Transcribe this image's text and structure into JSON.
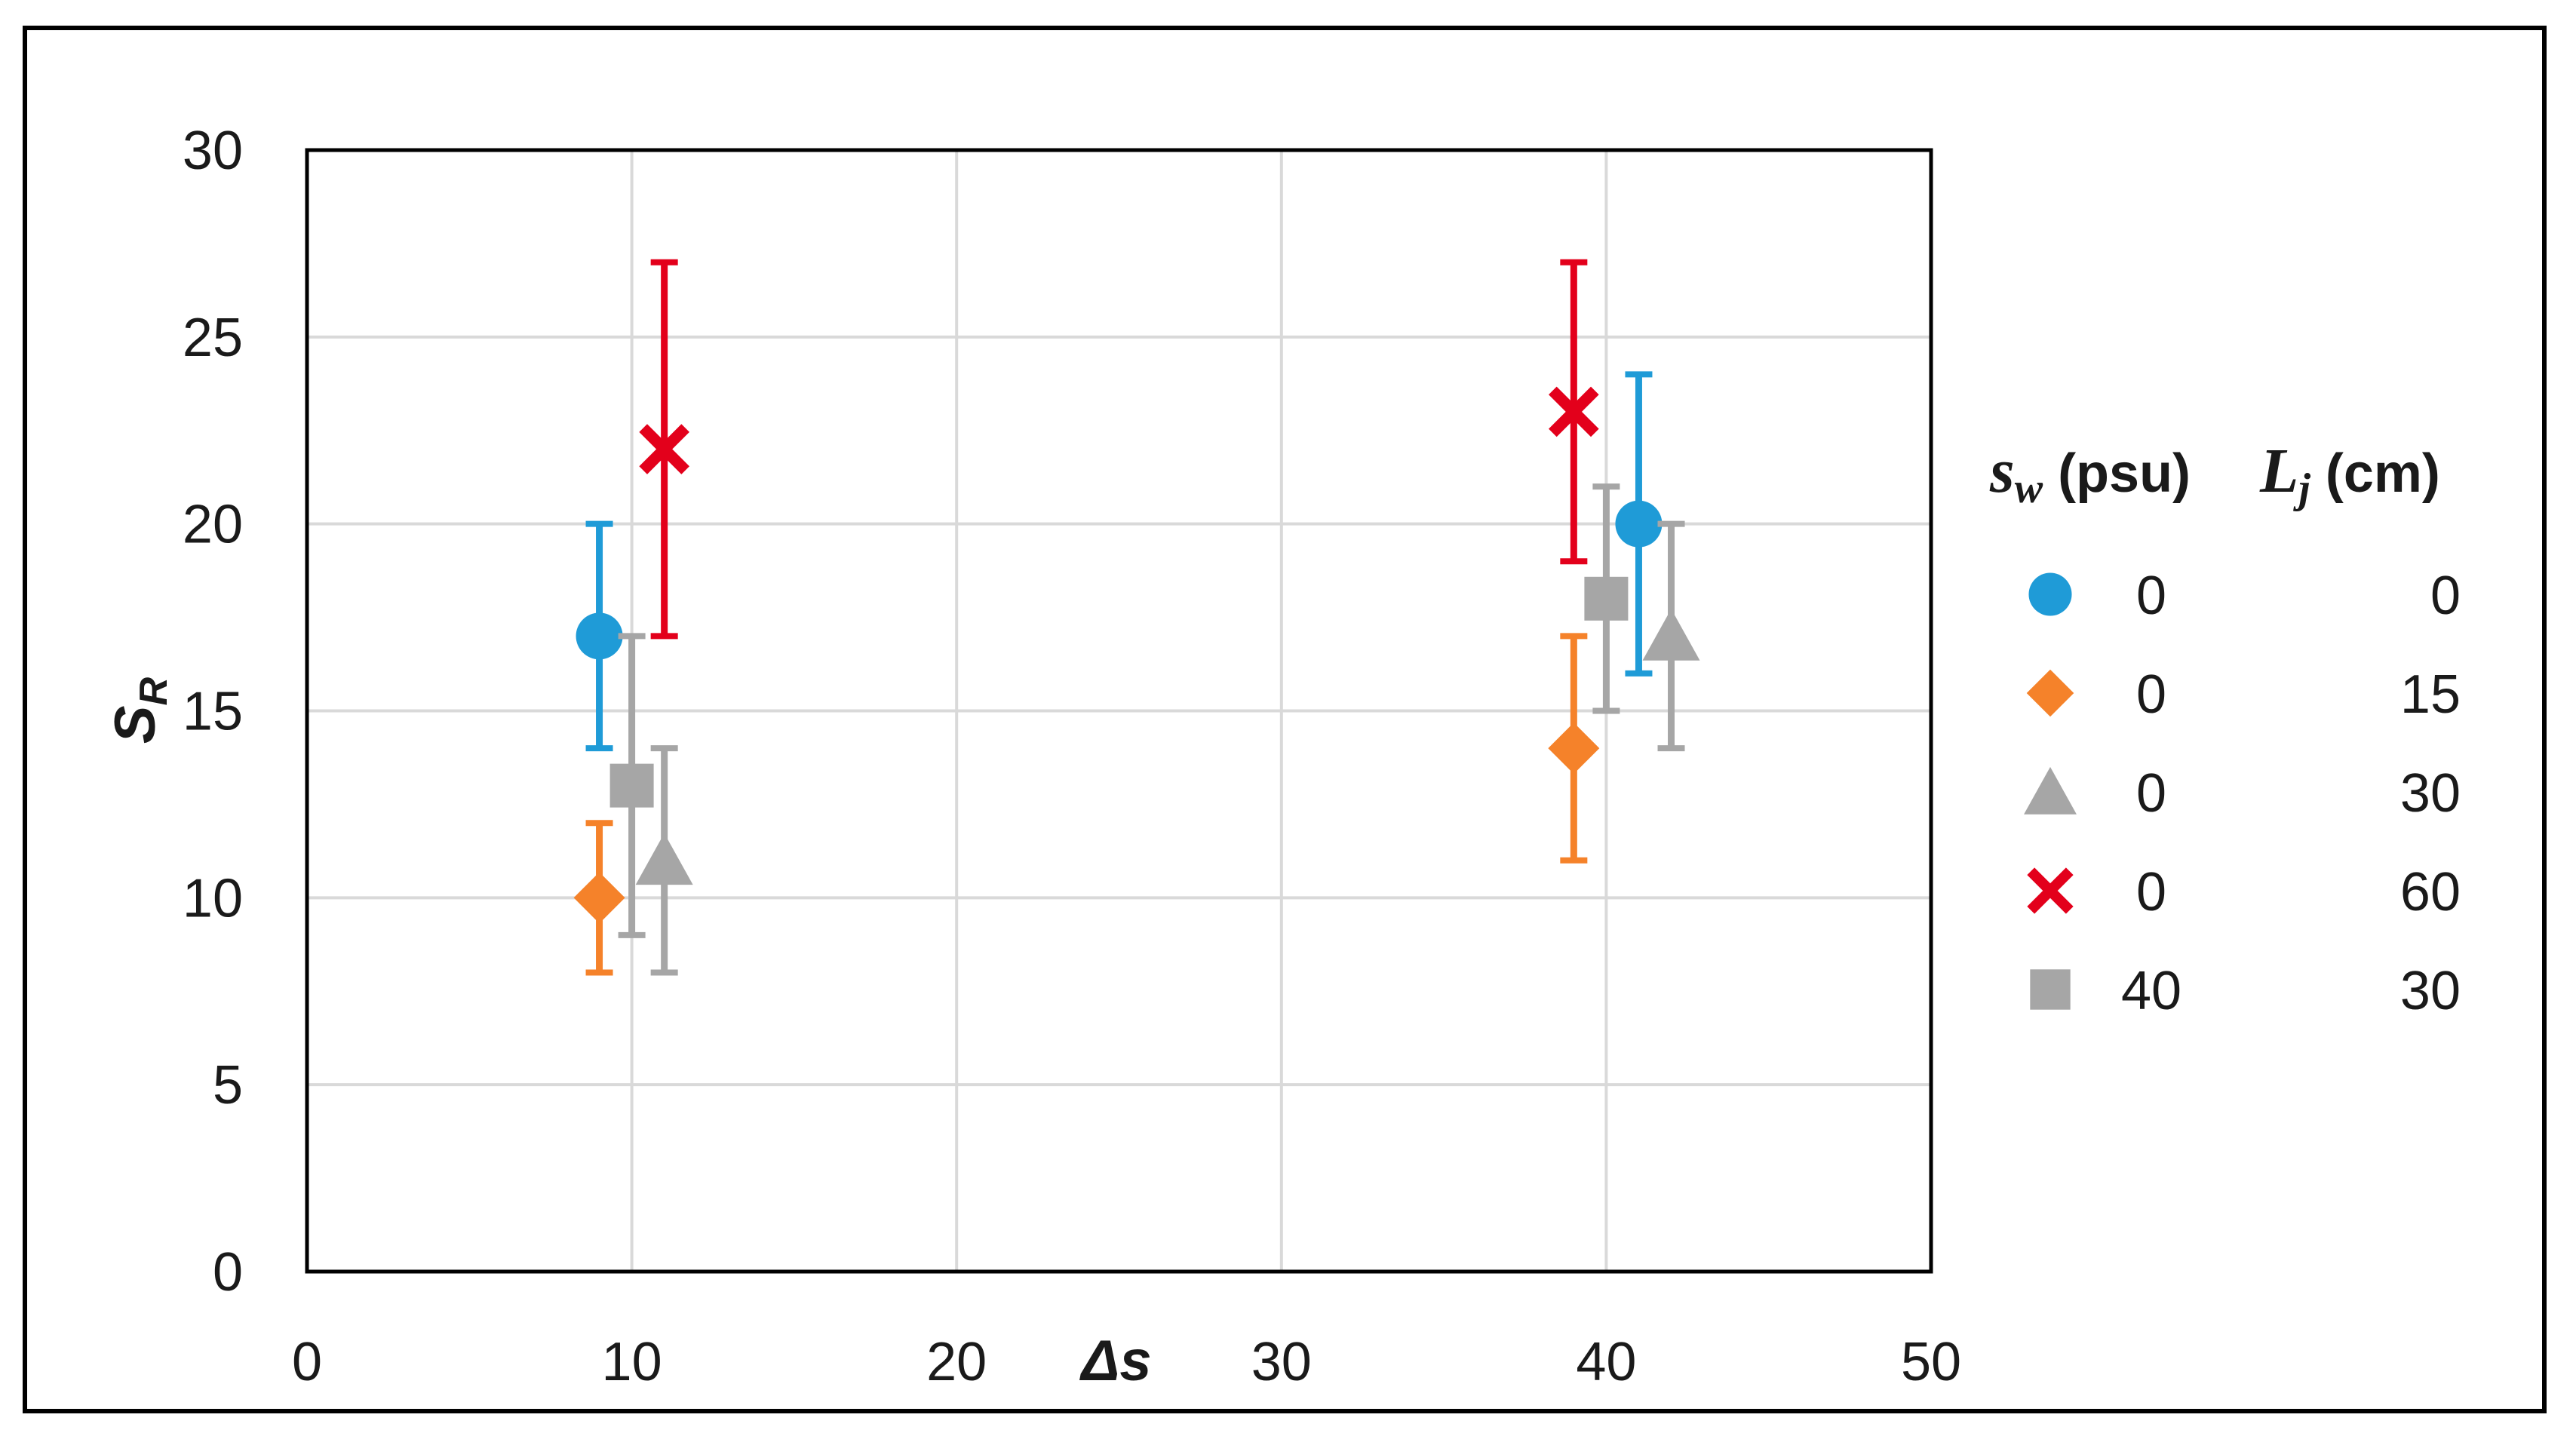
{
  "chart_data": {
    "type": "scatter",
    "title": "",
    "xlabel": "Δs",
    "ylabel": {
      "main": "S",
      "sub": "R"
    },
    "xlim": [
      0,
      50
    ],
    "ylim": [
      0,
      30
    ],
    "xticks": [
      0,
      10,
      20,
      30,
      40,
      50
    ],
    "yticks": [
      0,
      5,
      10,
      15,
      20,
      25,
      30
    ],
    "grid": true,
    "error_bars": true,
    "legend_position": "right",
    "legend_header": {
      "col1": {
        "main": "s",
        "sub": "w",
        "unit": " (psu)"
      },
      "col2": {
        "main": "L",
        "sub": "j",
        "unit": " (cm)"
      }
    },
    "series": [
      {
        "sw": "0",
        "lj": "0",
        "marker": "circle",
        "color": "#1f9bd7",
        "points": [
          {
            "x": 9,
            "y": 17,
            "ylow": 14,
            "yhigh": 20
          },
          {
            "x": 41,
            "y": 20,
            "ylow": 16,
            "yhigh": 24
          }
        ]
      },
      {
        "sw": "0",
        "lj": "15",
        "marker": "diamond",
        "color": "#f5822a",
        "points": [
          {
            "x": 9,
            "y": 10,
            "ylow": 8,
            "yhigh": 12
          },
          {
            "x": 39,
            "y": 14,
            "ylow": 11,
            "yhigh": 17
          }
        ]
      },
      {
        "sw": "0",
        "lj": "30",
        "marker": "triangle",
        "color": "#a6a6a6",
        "points": [
          {
            "x": 11,
            "y": 11,
            "ylow": 8,
            "yhigh": 14
          },
          {
            "x": 42,
            "y": 17,
            "ylow": 14,
            "yhigh": 20
          }
        ]
      },
      {
        "sw": "0",
        "lj": "60",
        "marker": "x",
        "color": "#e3001b",
        "points": [
          {
            "x": 11,
            "y": 22,
            "ylow": 17,
            "yhigh": 27
          },
          {
            "x": 39,
            "y": 23,
            "ylow": 19,
            "yhigh": 27
          }
        ]
      },
      {
        "sw": "40",
        "lj": "30",
        "marker": "square",
        "color": "#a6a6a6",
        "points": [
          {
            "x": 10,
            "y": 13,
            "ylow": 9,
            "yhigh": 17
          },
          {
            "x": 40,
            "y": 18,
            "ylow": 15,
            "yhigh": 21
          }
        ]
      }
    ]
  }
}
